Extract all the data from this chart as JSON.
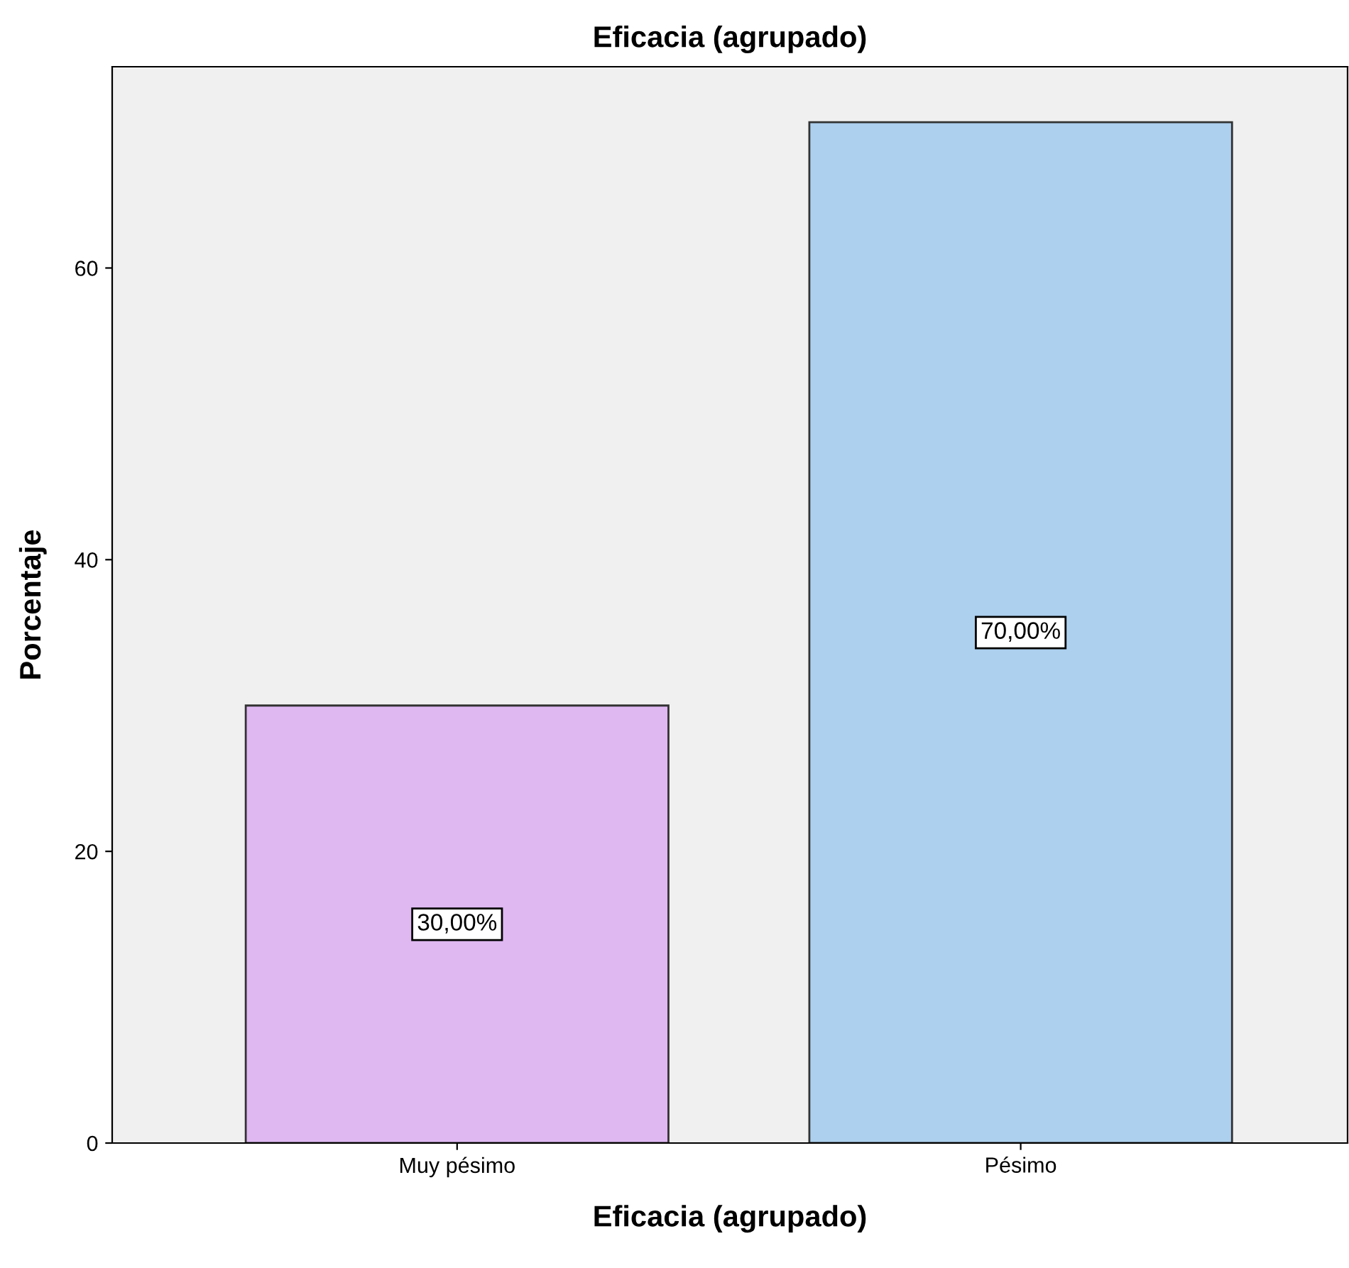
{
  "chart_data": {
    "type": "bar",
    "title": "Eficacia (agrupado)",
    "xlabel": "Eficacia (agrupado)",
    "ylabel": "Porcentaje",
    "categories": [
      "Muy pésimo",
      "Pésimo"
    ],
    "values": [
      30,
      70
    ],
    "colors": [
      "#dfb8f2",
      "#acd0ee"
    ],
    "value_labels": [
      "30,00%",
      "70,00%"
    ],
    "ylim": [
      0,
      73.8
    ],
    "yticks": [
      0,
      20,
      40,
      60
    ],
    "grid": false,
    "legend": false
  }
}
